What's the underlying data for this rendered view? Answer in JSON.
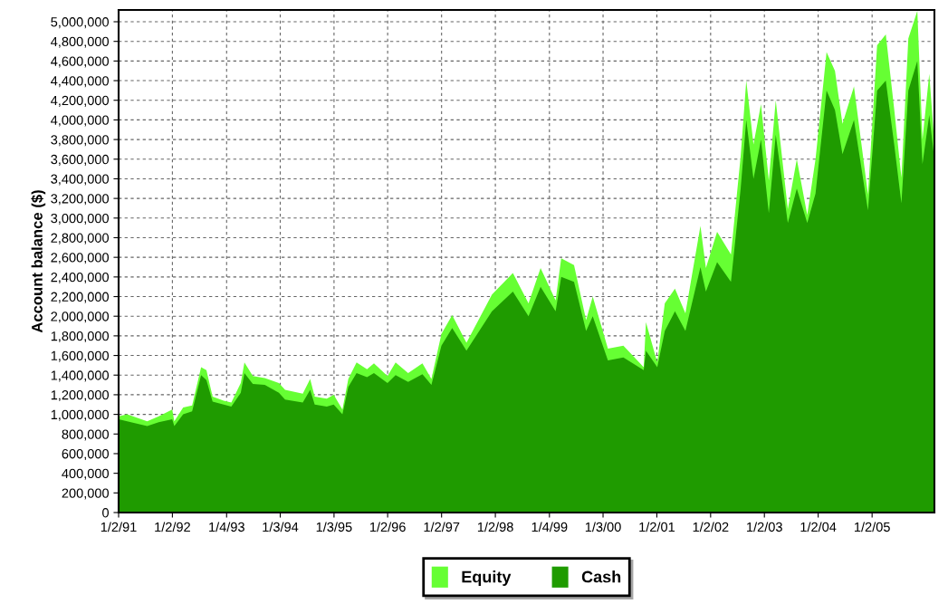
{
  "chart_data": {
    "type": "area",
    "ylabel": "Account balance ($)",
    "x": [
      "1991-01-02",
      "1991-03-01",
      "1991-07-15",
      "1991-10-01",
      "1992-01-01",
      "1992-01-15",
      "1992-03-15",
      "1992-05-15",
      "1992-07-15",
      "1992-08-20",
      "1992-10-01",
      "1992-12-15",
      "1993-02-05",
      "1993-04-10",
      "1993-05-05",
      "1993-07-01",
      "1993-09-20",
      "1993-12-25",
      "1994-02-05",
      "1994-06-05",
      "1994-07-25",
      "1994-08-25",
      "1994-11-15",
      "1995-01-01",
      "1995-03-01",
      "1995-04-10",
      "1995-06-05",
      "1995-08-15",
      "1995-10-01",
      "1996-01-01",
      "1996-02-25",
      "1996-05-20",
      "1996-08-25",
      "1996-10-25",
      "1997-01-01",
      "1997-03-15",
      "1997-06-20",
      "1997-12-10",
      "1998-05-01",
      "1998-08-15",
      "1998-11-05",
      "1999-02-15",
      "1999-03-25",
      "1999-06-20",
      "1999-09-10",
      "1999-10-25",
      "2000-02-05",
      "2000-05-20",
      "2000-10-05",
      "2000-10-20",
      "2001-01-05",
      "2001-02-25",
      "2001-05-05",
      "2001-07-15",
      "2001-10-25",
      "2001-12-01",
      "2002-02-15",
      "2002-05-20",
      "2002-07-25",
      "2002-09-01",
      "2002-10-20",
      "2002-12-10",
      "2003-02-01",
      "2003-03-20",
      "2003-06-10",
      "2003-08-10",
      "2003-10-20",
      "2003-12-15",
      "2004-02-28",
      "2004-04-25",
      "2004-06-15",
      "2004-09-01",
      "2004-12-05",
      "2005-02-05",
      "2005-04-05",
      "2005-06-01",
      "2005-07-20",
      "2005-09-05",
      "2005-11-05",
      "2005-12-10",
      "2006-01-25",
      "2006-03-01"
    ],
    "series": [
      {
        "name": "Equity",
        "color": "#66ff33",
        "values": [
          980000,
          1000000,
          930000,
          980000,
          1050000,
          930000,
          1070000,
          1090000,
          1480000,
          1450000,
          1180000,
          1140000,
          1120000,
          1320000,
          1530000,
          1390000,
          1370000,
          1320000,
          1250000,
          1210000,
          1360000,
          1180000,
          1160000,
          1200000,
          1050000,
          1360000,
          1530000,
          1460000,
          1520000,
          1390000,
          1530000,
          1420000,
          1520000,
          1360000,
          1820000,
          2010000,
          1730000,
          2220000,
          2440000,
          2130000,
          2490000,
          2160000,
          2590000,
          2520000,
          1960000,
          2200000,
          1670000,
          1700000,
          1480000,
          1940000,
          1530000,
          2130000,
          2280000,
          2030000,
          2920000,
          2490000,
          2860000,
          2630000,
          3630000,
          4400000,
          3750000,
          4160000,
          3380000,
          4200000,
          3090000,
          3600000,
          3030000,
          3600000,
          4690000,
          4500000,
          3960000,
          4340000,
          3240000,
          4760000,
          4870000,
          4110000,
          3410000,
          4830000,
          5110000,
          3800000,
          4470000,
          3760000
        ]
      },
      {
        "name": "Cash",
        "color": "#1f9b00",
        "values": [
          950000,
          930000,
          880000,
          920000,
          950000,
          880000,
          1000000,
          1030000,
          1400000,
          1350000,
          1130000,
          1100000,
          1080000,
          1220000,
          1420000,
          1310000,
          1300000,
          1220000,
          1150000,
          1120000,
          1250000,
          1100000,
          1080000,
          1100000,
          1000000,
          1280000,
          1420000,
          1380000,
          1420000,
          1320000,
          1400000,
          1330000,
          1410000,
          1300000,
          1700000,
          1880000,
          1650000,
          2050000,
          2250000,
          2000000,
          2300000,
          2050000,
          2400000,
          2350000,
          1850000,
          2000000,
          1550000,
          1580000,
          1450000,
          1650000,
          1480000,
          1850000,
          2050000,
          1850000,
          2500000,
          2250000,
          2550000,
          2350000,
          3300000,
          4000000,
          3400000,
          3800000,
          3050000,
          3850000,
          2950000,
          3300000,
          2950000,
          3250000,
          4300000,
          4100000,
          3650000,
          4000000,
          3080000,
          4300000,
          4400000,
          3750000,
          3150000,
          4300000,
          4600000,
          3550000,
          4050000,
          3600000
        ]
      }
    ],
    "xlim": [
      "1991-01-02",
      "2006-03-01"
    ],
    "xticks": [
      {
        "value": "1991-01-02",
        "label": "1/2/91"
      },
      {
        "value": "1992-01-02",
        "label": "1/2/92"
      },
      {
        "value": "1993-01-04",
        "label": "1/4/93"
      },
      {
        "value": "1994-01-03",
        "label": "1/3/94"
      },
      {
        "value": "1995-01-03",
        "label": "1/3/95"
      },
      {
        "value": "1996-01-02",
        "label": "1/2/96"
      },
      {
        "value": "1997-01-02",
        "label": "1/2/97"
      },
      {
        "value": "1998-01-02",
        "label": "1/2/98"
      },
      {
        "value": "1999-01-04",
        "label": "1/4/99"
      },
      {
        "value": "2000-01-03",
        "label": "1/3/00"
      },
      {
        "value": "2001-01-02",
        "label": "1/2/01"
      },
      {
        "value": "2002-01-02",
        "label": "1/2/02"
      },
      {
        "value": "2003-01-02",
        "label": "1/2/03"
      },
      {
        "value": "2004-01-02",
        "label": "1/2/04"
      },
      {
        "value": "2005-01-02",
        "label": "1/2/05"
      }
    ],
    "ylim": [
      0,
      5120000
    ],
    "yticks": [
      0,
      {
        "value": 200000,
        "label": "200,000"
      },
      {
        "value": 400000,
        "label": "400,000"
      },
      {
        "value": 600000,
        "label": "600,000"
      },
      {
        "value": 800000,
        "label": "800,000"
      },
      {
        "value": 1000000,
        "label": "1,000,000"
      },
      {
        "value": 1200000,
        "label": "1,200,000"
      },
      {
        "value": 1400000,
        "label": "1,400,000"
      },
      {
        "value": 1600000,
        "label": "1,600,000"
      },
      {
        "value": 1800000,
        "label": "1,800,000"
      },
      {
        "value": 2000000,
        "label": "2,000,000"
      },
      {
        "value": 2200000,
        "label": "2,200,000"
      },
      {
        "value": 2400000,
        "label": "2,400,000"
      },
      {
        "value": 2600000,
        "label": "2,600,000"
      },
      {
        "value": 2800000,
        "label": "2,800,000"
      },
      {
        "value": 3000000,
        "label": "3,000,000"
      },
      {
        "value": 3200000,
        "label": "3,200,000"
      },
      {
        "value": 3400000,
        "label": "3,400,000"
      },
      {
        "value": 3600000,
        "label": "3,600,000"
      },
      {
        "value": 3800000,
        "label": "3,800,000"
      },
      {
        "value": 4000000,
        "label": "4,000,000"
      },
      {
        "value": 4200000,
        "label": "4,200,000"
      },
      {
        "value": 4400000,
        "label": "4,400,000"
      },
      {
        "value": 4600000,
        "label": "4,600,000"
      },
      {
        "value": 4800000,
        "label": "4,800,000"
      },
      {
        "value": 5000000,
        "label": "5,000,000"
      }
    ],
    "grid": true,
    "legend": "bottom"
  }
}
